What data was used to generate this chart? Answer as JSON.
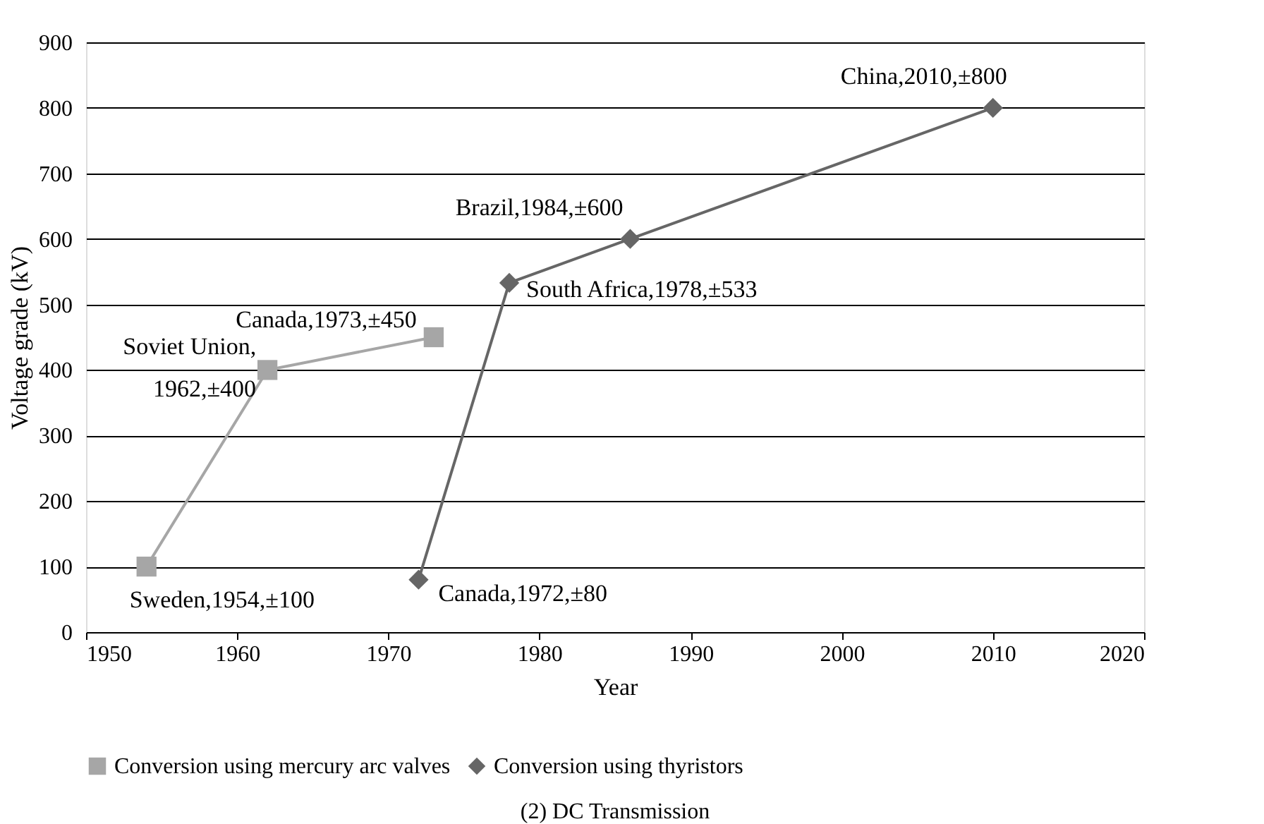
{
  "chart_data": {
    "type": "line",
    "title": "(2) DC Transmission",
    "xlabel": "Year",
    "ylabel": "Voltage grade (kV)",
    "xlim": [
      1950,
      2020
    ],
    "xticks": [
      1950,
      1960,
      1970,
      1980,
      1990,
      2000,
      2010,
      2020
    ],
    "ylim": [
      0,
      900
    ],
    "yticks": [
      0,
      100,
      200,
      300,
      400,
      500,
      600,
      700,
      800,
      900
    ],
    "grid": "y",
    "legend": "bottom",
    "line_style": "solid",
    "series": [
      {
        "name": "Conversion using mercury arc valves",
        "color": "#a6a6a6",
        "marker": "square",
        "x": [
          1954,
          1962,
          1973
        ],
        "values": [
          100,
          400,
          450
        ]
      },
      {
        "name": "Conversion using thyristors",
        "color": "#666666",
        "marker": "diamond",
        "x": [
          1972,
          1978,
          1986,
          2010
        ],
        "values": [
          80,
          533,
          600,
          800
        ]
      }
    ],
    "annotations": [
      {
        "text": "Sweden,1954,±100",
        "x": 1954,
        "y": 100
      },
      {
        "text": "Soviet Union,\n1962,±400",
        "x": 1962,
        "y": 400
      },
      {
        "text": "Canada,1973,±450",
        "x": 1973,
        "y": 450
      },
      {
        "text": "Canada,1972,±80",
        "x": 1972,
        "y": 80
      },
      {
        "text": "South Africa,1978,±533",
        "x": 1978,
        "y": 533
      },
      {
        "text": "Brazil,1984,±600",
        "x": 1986,
        "y": 600
      },
      {
        "text": "China,2010,±800",
        "x": 2010,
        "y": 800
      }
    ]
  }
}
